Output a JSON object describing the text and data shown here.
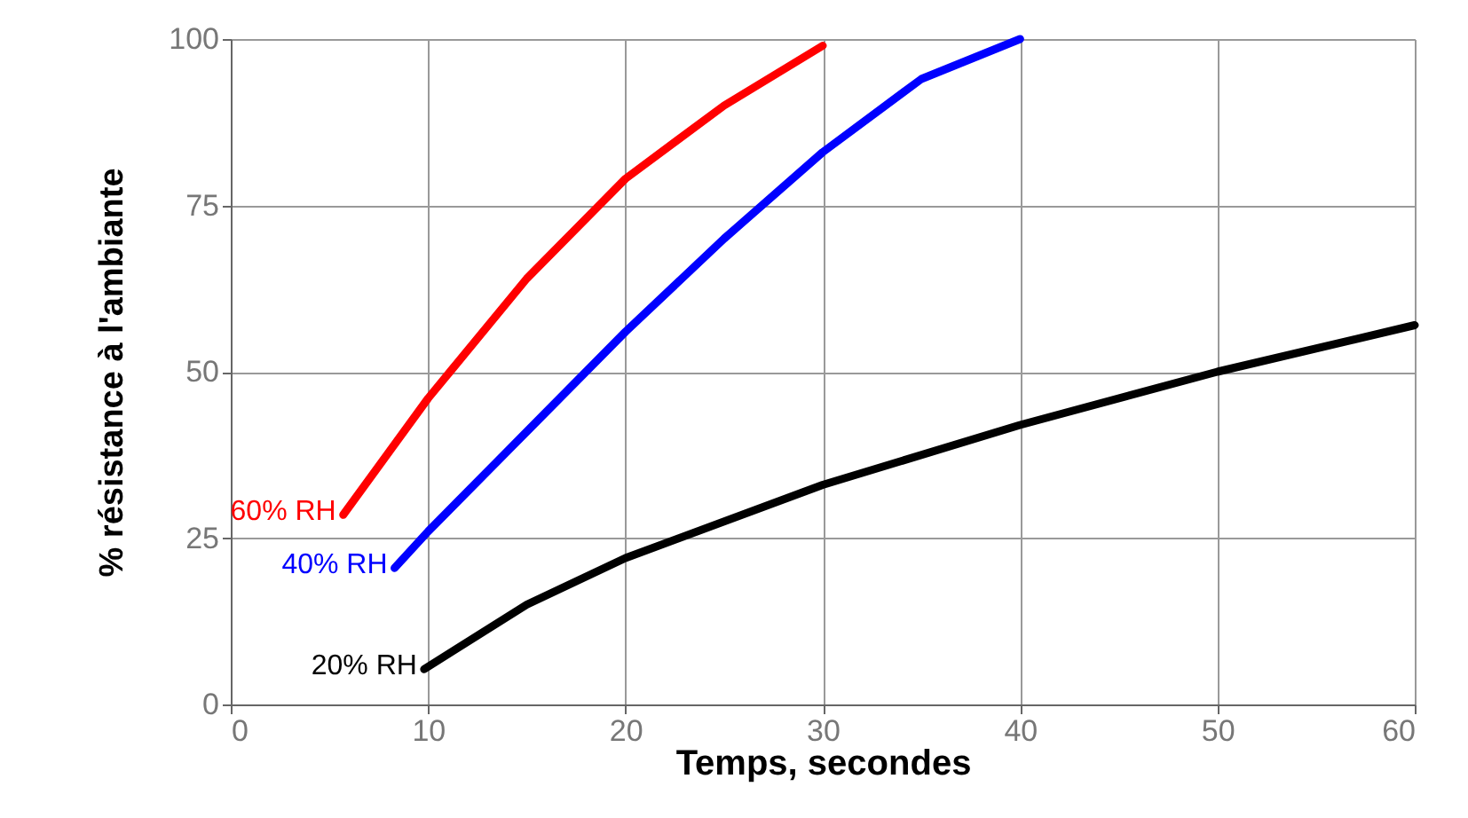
{
  "chart_data": {
    "type": "line",
    "xlabel": "Temps, secondes",
    "ylabel": "% résistance à l'ambiante",
    "xlim": [
      0,
      60
    ],
    "xticks": [
      0,
      10,
      20,
      30,
      40,
      50,
      60
    ],
    "ylim": [
      0,
      100
    ],
    "yticks": [
      0,
      25,
      50,
      75,
      100
    ],
    "grid": true,
    "line_style": "solid",
    "marker": "none",
    "series": [
      {
        "name": "60% RH",
        "color": "#ff0000",
        "x": [
          5.7,
          10,
          15,
          20,
          25,
          30
        ],
        "values": [
          28.5,
          46,
          64,
          79,
          90,
          99
        ]
      },
      {
        "name": "40% RH",
        "color": "#0000ff",
        "x": [
          8.3,
          10,
          15,
          20,
          25,
          30,
          35,
          40
        ],
        "values": [
          20.5,
          26,
          41,
          56,
          70,
          83,
          94,
          100
        ]
      },
      {
        "name": "20% RH",
        "color": "#000000",
        "x": [
          9.8,
          15,
          20,
          30,
          40,
          50,
          60
        ],
        "values": [
          5.3,
          15,
          22,
          33,
          42,
          50,
          57
        ]
      }
    ]
  }
}
